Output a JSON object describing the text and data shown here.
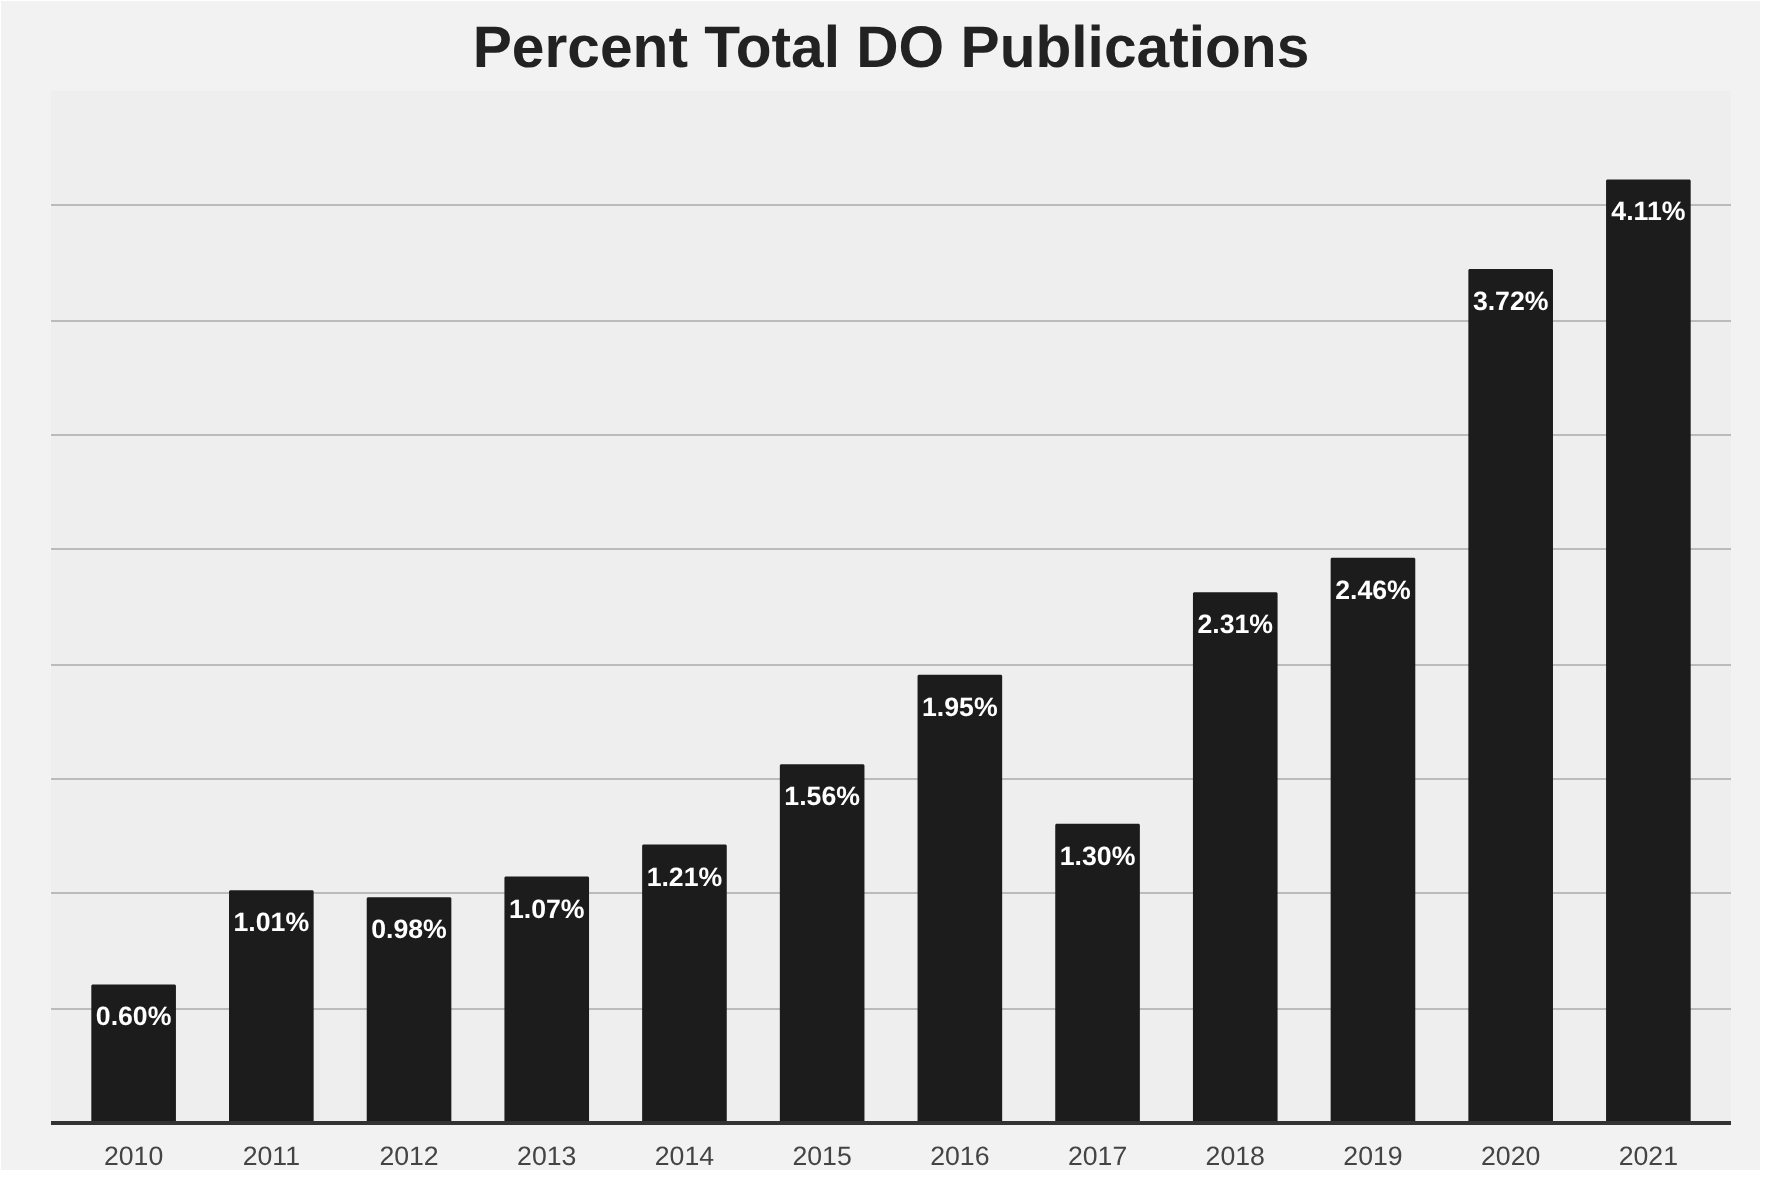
{
  "chart_data": {
    "type": "bar",
    "title": "Percent Total DO Publications",
    "categories": [
      "2010",
      "2011",
      "2012",
      "2013",
      "2014",
      "2015",
      "2016",
      "2017",
      "2018",
      "2019",
      "2020",
      "2021"
    ],
    "values": [
      0.6,
      1.01,
      0.98,
      1.07,
      1.21,
      1.56,
      1.95,
      1.3,
      2.31,
      2.46,
      3.72,
      4.11
    ],
    "value_labels": [
      "0.60%",
      "1.01%",
      "0.98%",
      "1.07%",
      "1.21%",
      "1.56%",
      "1.95%",
      "1.30%",
      "2.31%",
      "2.46%",
      "3.72%",
      "4.11%"
    ],
    "color": "#1c1c1c",
    "ylim": [
      0,
      4.5
    ],
    "yticks": [
      {
        "value": 0,
        "label": null
      },
      {
        "value": 0.5,
        "label": null
      },
      {
        "value": 1,
        "label": null
      },
      {
        "value": 1.5,
        "label": null
      },
      {
        "value": 2,
        "label": null
      },
      {
        "value": 2.5,
        "label": null
      },
      {
        "value": 3,
        "label": null
      },
      {
        "value": 3.5,
        "label": null
      },
      {
        "value": 4,
        "label": null
      },
      {
        "value": 4.5,
        "label": null
      }
    ],
    "grid": "y",
    "tick_labels": "x"
  }
}
